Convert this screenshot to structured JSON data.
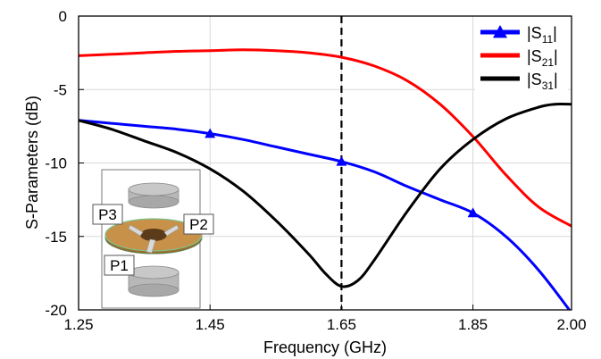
{
  "chart_data": {
    "type": "line",
    "xlabel": "Frequency (GHz)",
    "ylabel": "S-Parameters (dB)",
    "xlim": [
      1.25,
      2.0
    ],
    "ylim": [
      -20,
      0
    ],
    "xticks": [
      "1.25",
      "1.45",
      "1.65",
      "1.85",
      "2.00"
    ],
    "xtick_values": [
      1.25,
      1.45,
      1.65,
      1.85,
      2.0
    ],
    "yticks": [
      "0",
      "-5",
      "-10",
      "-15",
      "-20"
    ],
    "ytick_values": [
      0,
      -5,
      -10,
      -15,
      -20
    ],
    "grid": true,
    "legend_position": "top-right",
    "vertical_marker": 1.65,
    "series": [
      {
        "name": "|S11|",
        "label_main": "|S",
        "label_sub": "11",
        "label_end": "|",
        "color": "#0000ff",
        "marker": "triangle",
        "marker_x": [
          1.45,
          1.65,
          1.85
        ],
        "x": [
          1.25,
          1.3,
          1.35,
          1.4,
          1.45,
          1.5,
          1.55,
          1.6,
          1.65,
          1.7,
          1.75,
          1.8,
          1.85,
          1.9,
          1.95,
          2.0
        ],
        "y": [
          -7.1,
          -7.3,
          -7.5,
          -7.7,
          -8.0,
          -8.4,
          -8.9,
          -9.4,
          -9.9,
          -10.6,
          -11.6,
          -12.5,
          -13.4,
          -15.0,
          -17.3,
          -20.2
        ]
      },
      {
        "name": "|S21|",
        "label_main": "|S",
        "label_sub": "21",
        "label_end": "|",
        "color": "#ff0000",
        "x": [
          1.25,
          1.3,
          1.35,
          1.4,
          1.45,
          1.5,
          1.55,
          1.6,
          1.65,
          1.7,
          1.75,
          1.8,
          1.85,
          1.9,
          1.95,
          2.0
        ],
        "y": [
          -2.7,
          -2.6,
          -2.5,
          -2.4,
          -2.35,
          -2.3,
          -2.35,
          -2.5,
          -2.8,
          -3.4,
          -4.4,
          -6.0,
          -8.2,
          -10.8,
          -13.0,
          -14.3
        ]
      },
      {
        "name": "|S31|",
        "label_main": "|S",
        "label_sub": "31",
        "label_end": "|",
        "color": "#000000",
        "x": [
          1.25,
          1.3,
          1.35,
          1.4,
          1.45,
          1.5,
          1.55,
          1.6,
          1.625,
          1.65,
          1.675,
          1.7,
          1.75,
          1.8,
          1.85,
          1.9,
          1.95,
          1.975,
          2.0
        ],
        "y": [
          -7.1,
          -7.7,
          -8.5,
          -9.3,
          -10.4,
          -11.9,
          -13.9,
          -16.2,
          -17.5,
          -18.4,
          -18.0,
          -16.6,
          -13.3,
          -10.4,
          -8.4,
          -7.0,
          -6.2,
          -6.0,
          -6.0
        ]
      }
    ]
  },
  "inset": {
    "port_labels": [
      "P3",
      "P2",
      "P1"
    ]
  }
}
